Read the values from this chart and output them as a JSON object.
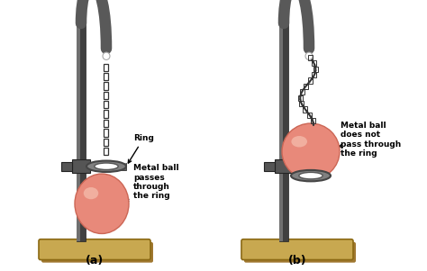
{
  "background_color": "#ffffff",
  "fig_width": 4.74,
  "fig_height": 3.01,
  "dpi": 100,
  "label_a": "(a)",
  "label_b": "(b)",
  "text_ring": "Ring",
  "text_passes": "Metal ball\npasses\nthrough\nthe ring",
  "text_not_pass": "Metal ball\ndoes not\npass through\nthe ring",
  "stand_color": "#595959",
  "base_color": "#c8a850",
  "base_edge_color": "#8b6914",
  "ring_color": "#909090",
  "ring_edge_color": "#444444",
  "ball_color": "#e8897a",
  "ball_edge_color": "#cc6655",
  "chain_color": "#333333",
  "clamp_color": "#666666",
  "text_color": "#000000",
  "font_size_label": 9,
  "font_size_text": 6.5
}
